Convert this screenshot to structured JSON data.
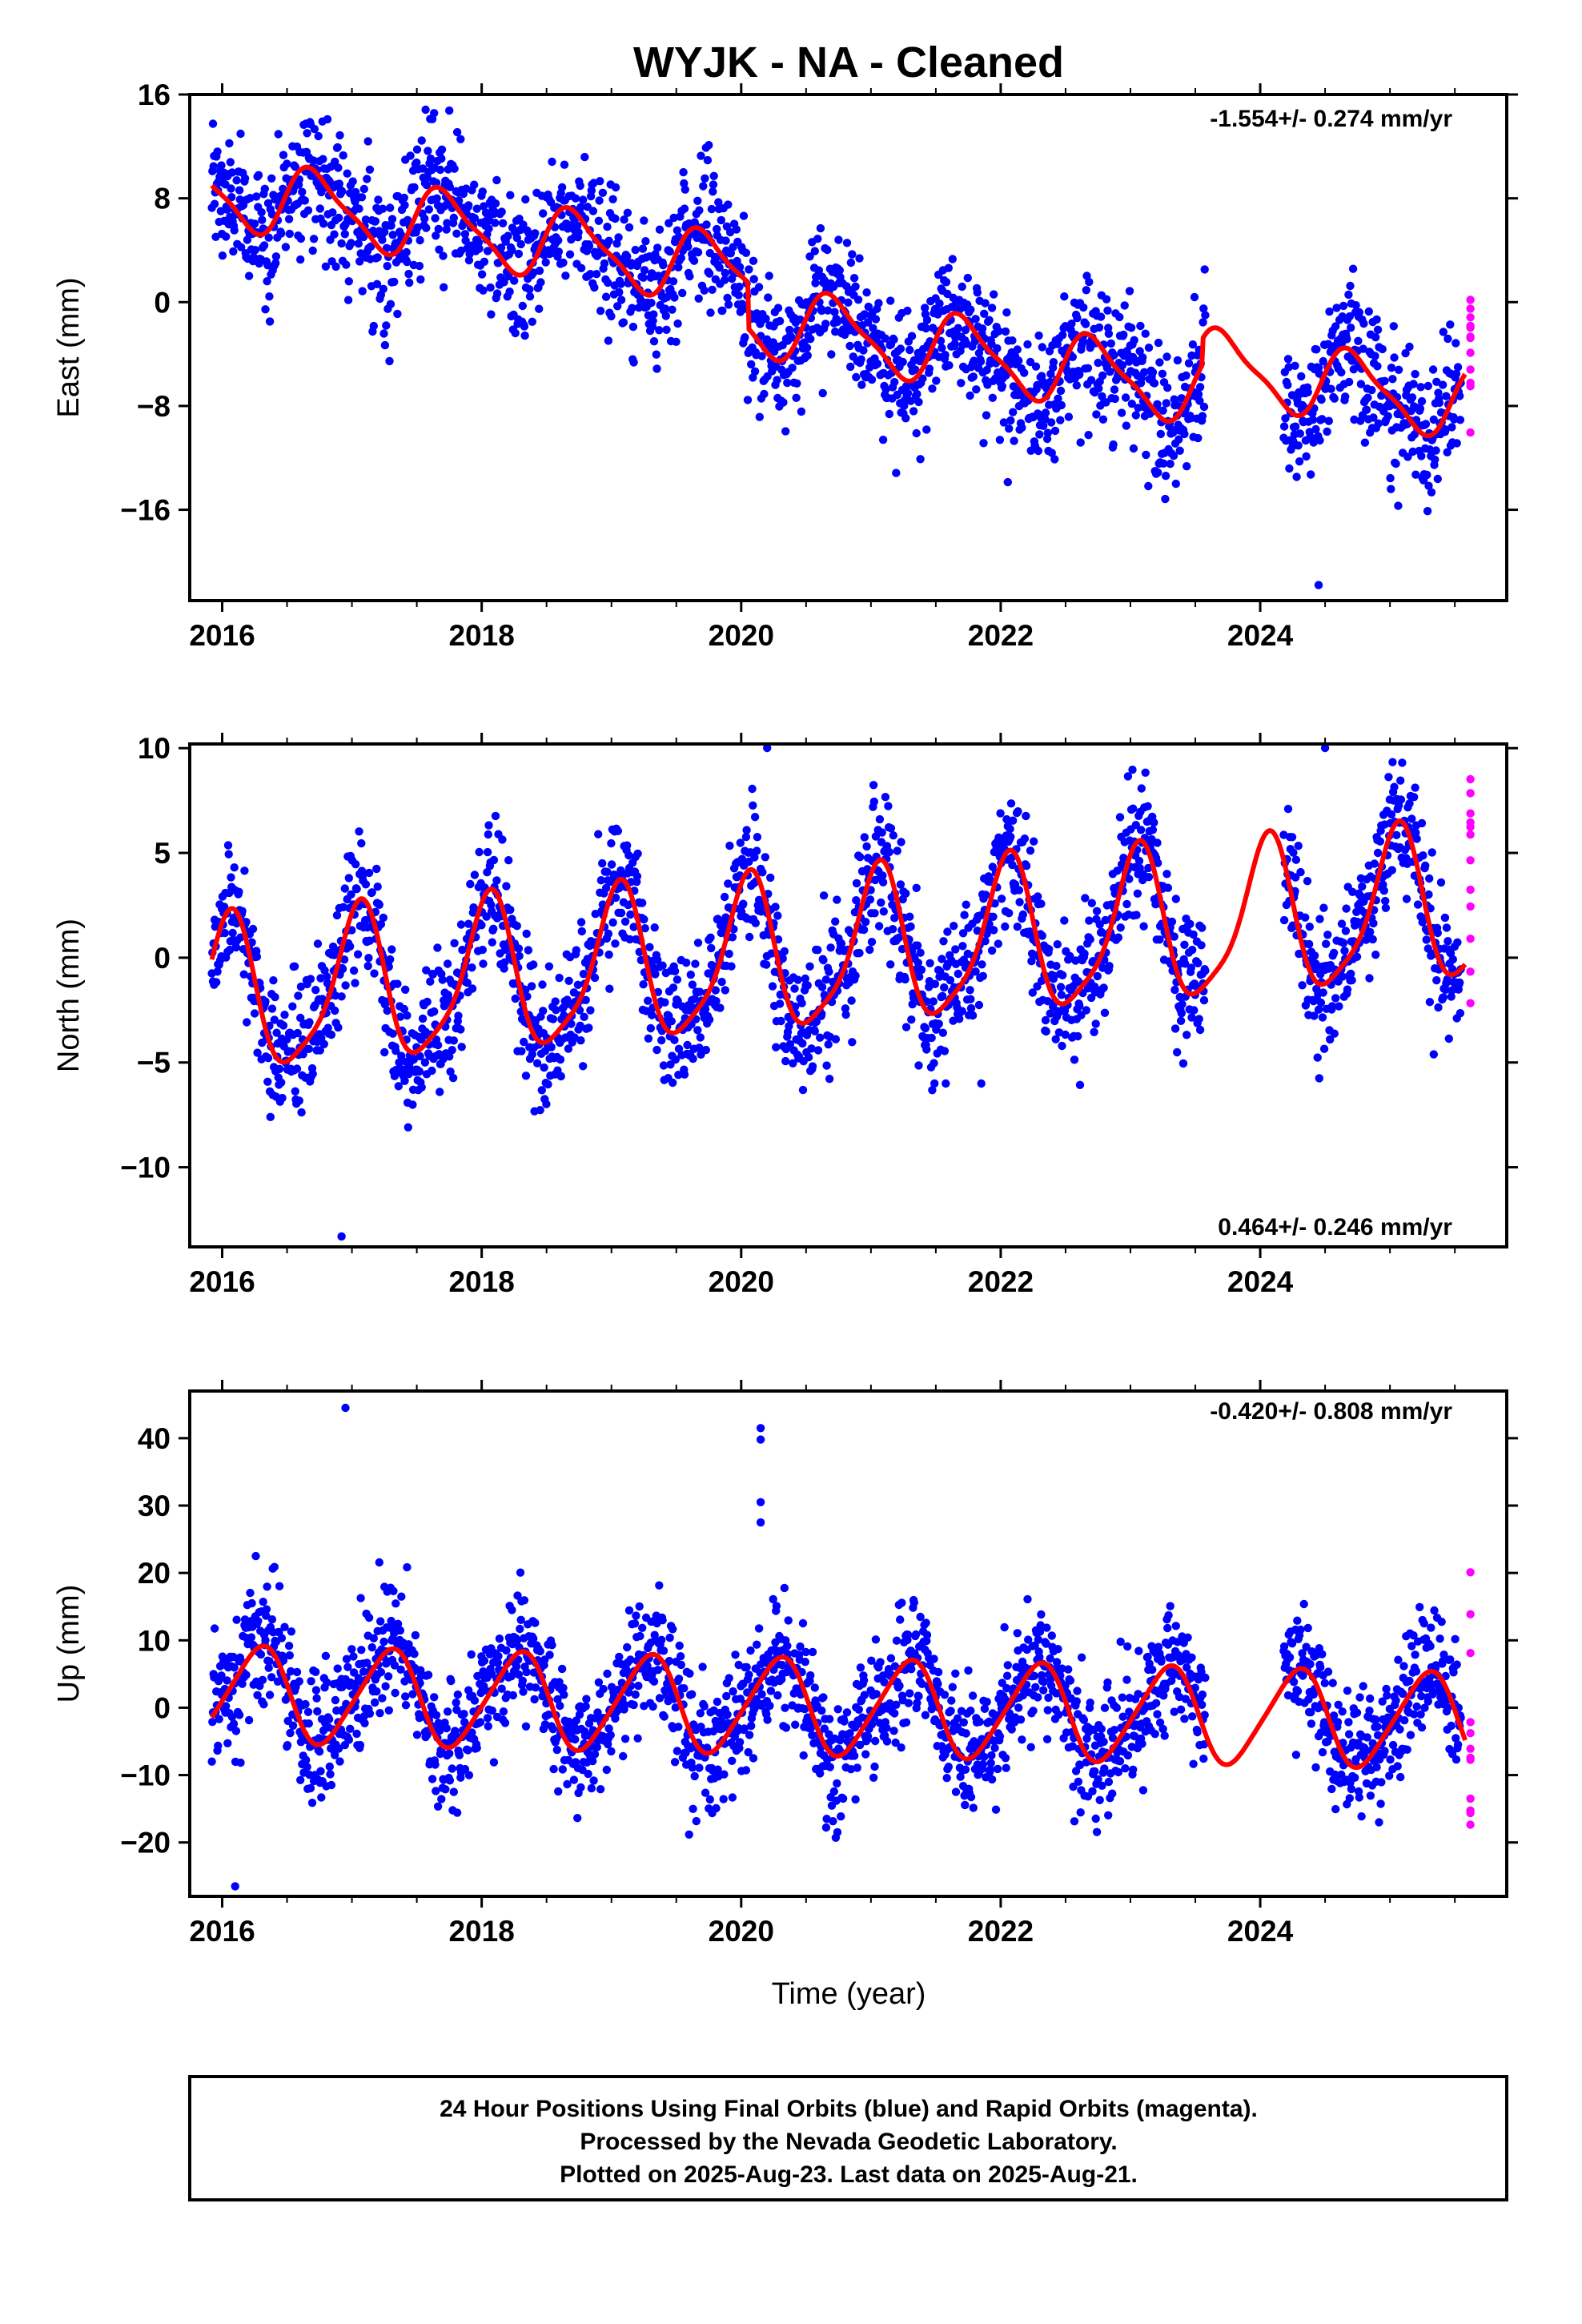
{
  "title": "WYJK  - NA - Cleaned",
  "xlabel": "Time (year)",
  "footer": {
    "lines": [
      "24 Hour Positions Using Final Orbits (blue) and Rapid Orbits (magenta).",
      "Processed by the Nevada Geodetic Laboratory.",
      "Plotted on 2025-Aug-23. Last data on 2025-Aug-21."
    ]
  },
  "colors": {
    "final": "#0000ff",
    "rapid": "#ff00ff",
    "model": "#ff0000",
    "frame": "#000000"
  },
  "chart_data": [
    {
      "type": "scatter",
      "id": "east",
      "ylabel": "East (mm)",
      "rate_text": "-1.554+/- 0.274 mm/yr",
      "xlim": [
        2015.75,
        2025.9
      ],
      "ylim": [
        -23,
        16
      ],
      "x_ticks": [
        2016,
        2018,
        2020,
        2022,
        2024
      ],
      "y_ticks": [
        16,
        8,
        0,
        -8,
        -16
      ],
      "y_tick_labels": [
        "16",
        "8",
        "0",
        "−8",
        "−16"
      ],
      "model": {
        "start": 2015.92,
        "end": 2025.58,
        "rate": -1.554,
        "offset": 8.5,
        "amp": 2.6,
        "phase": 0.72,
        "semi_amp": 0.7,
        "semi_phase": 0.1,
        "steps": [
          {
            "t": 2020.05,
            "dy": -3.5
          },
          {
            "t": 2023.55,
            "dy": 2.0
          }
        ]
      },
      "noise": 2.6,
      "rapid": {
        "count": 12,
        "mean": -5,
        "spread": 6
      },
      "outliers": [
        {
          "x": 2024.45,
          "y": -21.8
        },
        {
          "x": 2019.75,
          "y": 12.1
        }
      ]
    },
    {
      "type": "scatter",
      "id": "north",
      "ylabel": "North (mm)",
      "rate_text": "0.464+/- 0.246 mm/yr",
      "xlim": [
        2015.75,
        2025.9
      ],
      "ylim": [
        -13.8,
        10.2
      ],
      "x_ticks": [
        2016,
        2018,
        2020,
        2022,
        2024
      ],
      "y_ticks": [
        10,
        5,
        0,
        -5,
        -10
      ],
      "y_tick_labels": [
        "10",
        "5",
        "0",
        "−5",
        "−10"
      ],
      "model": {
        "start": 2015.92,
        "end": 2025.58,
        "rate": 0.464,
        "offset": -2.0,
        "amp": 3.6,
        "phase": 0.05,
        "semi_amp": 0.8,
        "semi_phase": 0.6,
        "steps": []
      },
      "noise": 1.6,
      "rapid": {
        "count": 12,
        "mean": 3.5,
        "spread": 6
      },
      "outliers": [
        {
          "x": 2016.92,
          "y": -13.3
        },
        {
          "x": 2020.2,
          "y": 10.1
        },
        {
          "x": 2024.5,
          "y": 10.5
        }
      ]
    },
    {
      "type": "scatter",
      "id": "up",
      "ylabel": "Up (mm)",
      "rate_text": "-0.420+/- 0.808 mm/yr",
      "xlim": [
        2015.75,
        2025.9
      ],
      "ylim": [
        -28,
        47
      ],
      "x_ticks": [
        2016,
        2018,
        2020,
        2022,
        2024
      ],
      "y_ticks": [
        40,
        30,
        20,
        10,
        0,
        -10,
        -20
      ],
      "y_tick_labels": [
        "40",
        "30",
        "20",
        "10",
        "0",
        "−10",
        "−20"
      ],
      "model": {
        "start": 2015.92,
        "end": 2025.58,
        "rate": -0.42,
        "offset": 2.0,
        "amp": 7.0,
        "phase": 0.28,
        "semi_amp": 1.0,
        "semi_phase": 0.9,
        "steps": []
      },
      "noise": 4.8,
      "rapid": {
        "count": 12,
        "mean": 1,
        "spread": 20
      },
      "outliers": [
        {
          "x": 2016.95,
          "y": 44.5
        },
        {
          "x": 2020.15,
          "y": 41.5
        },
        {
          "x": 2020.15,
          "y": 39.8
        },
        {
          "x": 2020.15,
          "y": 30.5
        },
        {
          "x": 2020.15,
          "y": 27.5
        },
        {
          "x": 2016.1,
          "y": -26.5
        }
      ]
    }
  ]
}
